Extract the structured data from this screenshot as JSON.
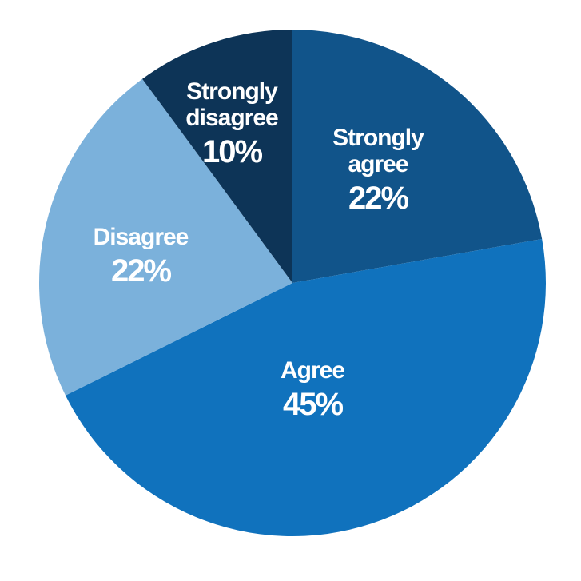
{
  "chart_data": {
    "type": "pie",
    "slices": [
      {
        "label_lines": [
          "Strongly",
          "agree"
        ],
        "value": 22,
        "value_label": "22%",
        "color": "#11548a"
      },
      {
        "label_lines": [
          "Agree"
        ],
        "value": 45,
        "value_label": "45%",
        "color": "#1072bd"
      },
      {
        "label_lines": [
          "Disagree"
        ],
        "value": 22,
        "value_label": "22%",
        "color": "#7bb1db"
      },
      {
        "label_lines": [
          "Strongly",
          "disagree"
        ],
        "value": 10,
        "value_label": "10%",
        "color": "#0d3457"
      }
    ],
    "start_angle_deg": 0,
    "direction": "clockwise",
    "legend": "none"
  }
}
